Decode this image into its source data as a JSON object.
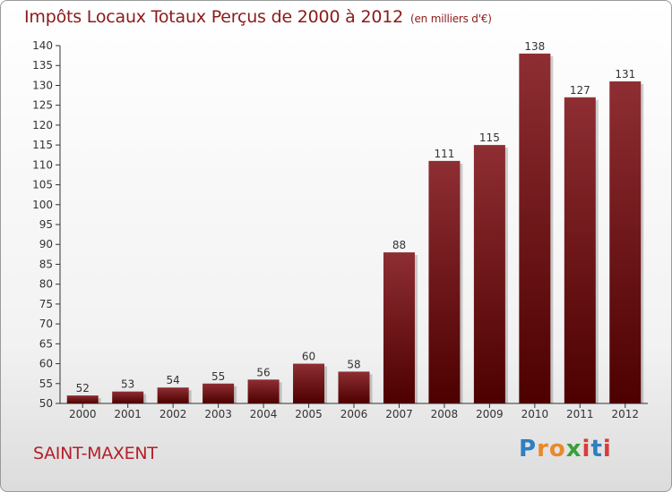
{
  "title": "Impôts Locaux Totaux Perçus de 2000 à 2012",
  "unit": "(en milliers d'€)",
  "commune": "SAINT-MAXENT",
  "logo": {
    "text": "Proxiti",
    "letters": [
      "P",
      "r",
      "o",
      "x",
      "i",
      "t",
      "i"
    ],
    "colors": [
      "#2f7fc1",
      "#e8892b",
      "#e8892b",
      "#3aa03a",
      "#d93b3b",
      "#2f7fc1",
      "#d93b3b"
    ]
  },
  "colors": {
    "bar_top": "#8e2e33",
    "bar_bottom": "#4d0000",
    "title": "#8b1a1a",
    "commune": "#b3202a"
  },
  "chart_data": {
    "type": "bar",
    "title": "Impôts Locaux Totaux Perçus de 2000 à 2012",
    "ylabel": "(en milliers d'€)",
    "xlabel": "",
    "categories": [
      "2000",
      "2001",
      "2002",
      "2003",
      "2004",
      "2005",
      "2006",
      "2007",
      "2008",
      "2009",
      "2010",
      "2011",
      "2012"
    ],
    "values": [
      52,
      53,
      54,
      55,
      56,
      60,
      58,
      88,
      111,
      115,
      138,
      127,
      131
    ],
    "ylim": [
      50,
      140
    ],
    "yticks": [
      50,
      55,
      60,
      65,
      70,
      75,
      80,
      85,
      90,
      95,
      100,
      105,
      110,
      115,
      120,
      125,
      130,
      135,
      140
    ],
    "grid": false
  }
}
